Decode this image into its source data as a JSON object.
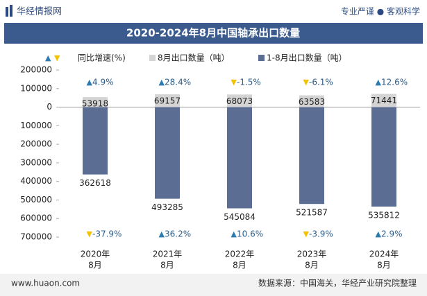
{
  "header": {
    "logo": "华经情报网",
    "slogan": "专业严谨 ● 客观科学"
  },
  "chart_data": {
    "type": "bar",
    "title": "2020-2024年8月中国轴承出口数量",
    "categories": [
      [
        "2020年",
        "8月"
      ],
      [
        "2021年",
        "8月"
      ],
      [
        "2022年",
        "8月"
      ],
      [
        "2023年",
        "8月"
      ],
      [
        "2024年",
        "8月"
      ]
    ],
    "growth_legend": "同比增速(%)",
    "up_color": "#2b7bb0",
    "down_color": "#f2c200",
    "series": [
      {
        "name": "8月出口数量（吨）",
        "color": "#d4d4d4",
        "values": [
          53918,
          69157,
          68073,
          63583,
          71441
        ],
        "growth": [
          4.9,
          28.4,
          -1.5,
          -6.1,
          12.6
        ],
        "growth_labels": [
          "4.9%",
          "28.4%",
          "-1.5%",
          "-6.1%",
          "12.6%"
        ]
      },
      {
        "name": "1-8月出口数量（吨）",
        "color": "#5b6d93",
        "values": [
          -362618,
          -493285,
          -545084,
          -521587,
          -535812
        ],
        "value_labels": [
          "362618",
          "493285",
          "545084",
          "521587",
          "535812"
        ],
        "growth": [
          -37.9,
          36.2,
          10.6,
          -3.9,
          2.9
        ],
        "growth_labels": [
          "-37.9%",
          "36.2%",
          "10.6%",
          "-3.9%",
          "2.9%"
        ]
      }
    ],
    "ylim": [
      -700000,
      200000
    ],
    "yticks": [
      200000,
      100000,
      0,
      {
        "value": -100000,
        "label": "100000"
      },
      {
        "value": -200000,
        "label": "200000"
      },
      {
        "value": -300000,
        "label": "300000"
      },
      {
        "value": -400000,
        "label": "400000"
      },
      {
        "value": -500000,
        "label": "500000"
      },
      {
        "value": -600000,
        "label": "600000"
      },
      {
        "value": -700000,
        "label": "700000"
      }
    ],
    "grid": false
  },
  "footer": {
    "site": "www.huaon.com",
    "source": "数据来源：中国海关，华经产业研究院整理"
  }
}
